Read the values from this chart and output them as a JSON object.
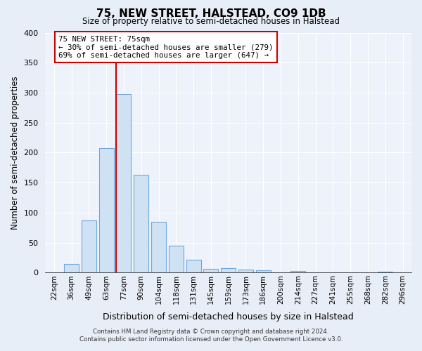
{
  "title": "75, NEW STREET, HALSTEAD, CO9 1DB",
  "subtitle": "Size of property relative to semi-detached houses in Halstead",
  "xlabel": "Distribution of semi-detached houses by size in Halstead",
  "ylabel": "Number of semi-detached properties",
  "footer_line1": "Contains HM Land Registry data © Crown copyright and database right 2024.",
  "footer_line2": "Contains public sector information licensed under the Open Government Licence v3.0.",
  "bin_labels": [
    "22sqm",
    "36sqm",
    "49sqm",
    "63sqm",
    "77sqm",
    "90sqm",
    "104sqm",
    "118sqm",
    "131sqm",
    "145sqm",
    "159sqm",
    "173sqm",
    "186sqm",
    "200sqm",
    "214sqm",
    "227sqm",
    "241sqm",
    "255sqm",
    "268sqm",
    "282sqm",
    "296sqm"
  ],
  "bar_heights": [
    0,
    15,
    87,
    208,
    298,
    163,
    85,
    45,
    22,
    7,
    8,
    5,
    4,
    0,
    3,
    0,
    0,
    0,
    0,
    2,
    0
  ],
  "bar_color": "#cfe2f3",
  "bar_edge_color": "#6fa8dc",
  "highlight_bar_index": 4,
  "highlight_line_color": "#cc0000",
  "annotation_text_line1": "75 NEW STREET: 75sqm",
  "annotation_text_line2": "← 30% of semi-detached houses are smaller (279)",
  "annotation_text_line3": "69% of semi-detached houses are larger (647) →",
  "annotation_box_color": "#ffffff",
  "annotation_box_edge_color": "#cc0000",
  "ylim": [
    0,
    400
  ],
  "yticks": [
    0,
    50,
    100,
    150,
    200,
    250,
    300,
    350,
    400
  ],
  "bg_color": "#e8eef8",
  "plot_bg_color": "#eef2fa",
  "grid_color": "#ffffff"
}
